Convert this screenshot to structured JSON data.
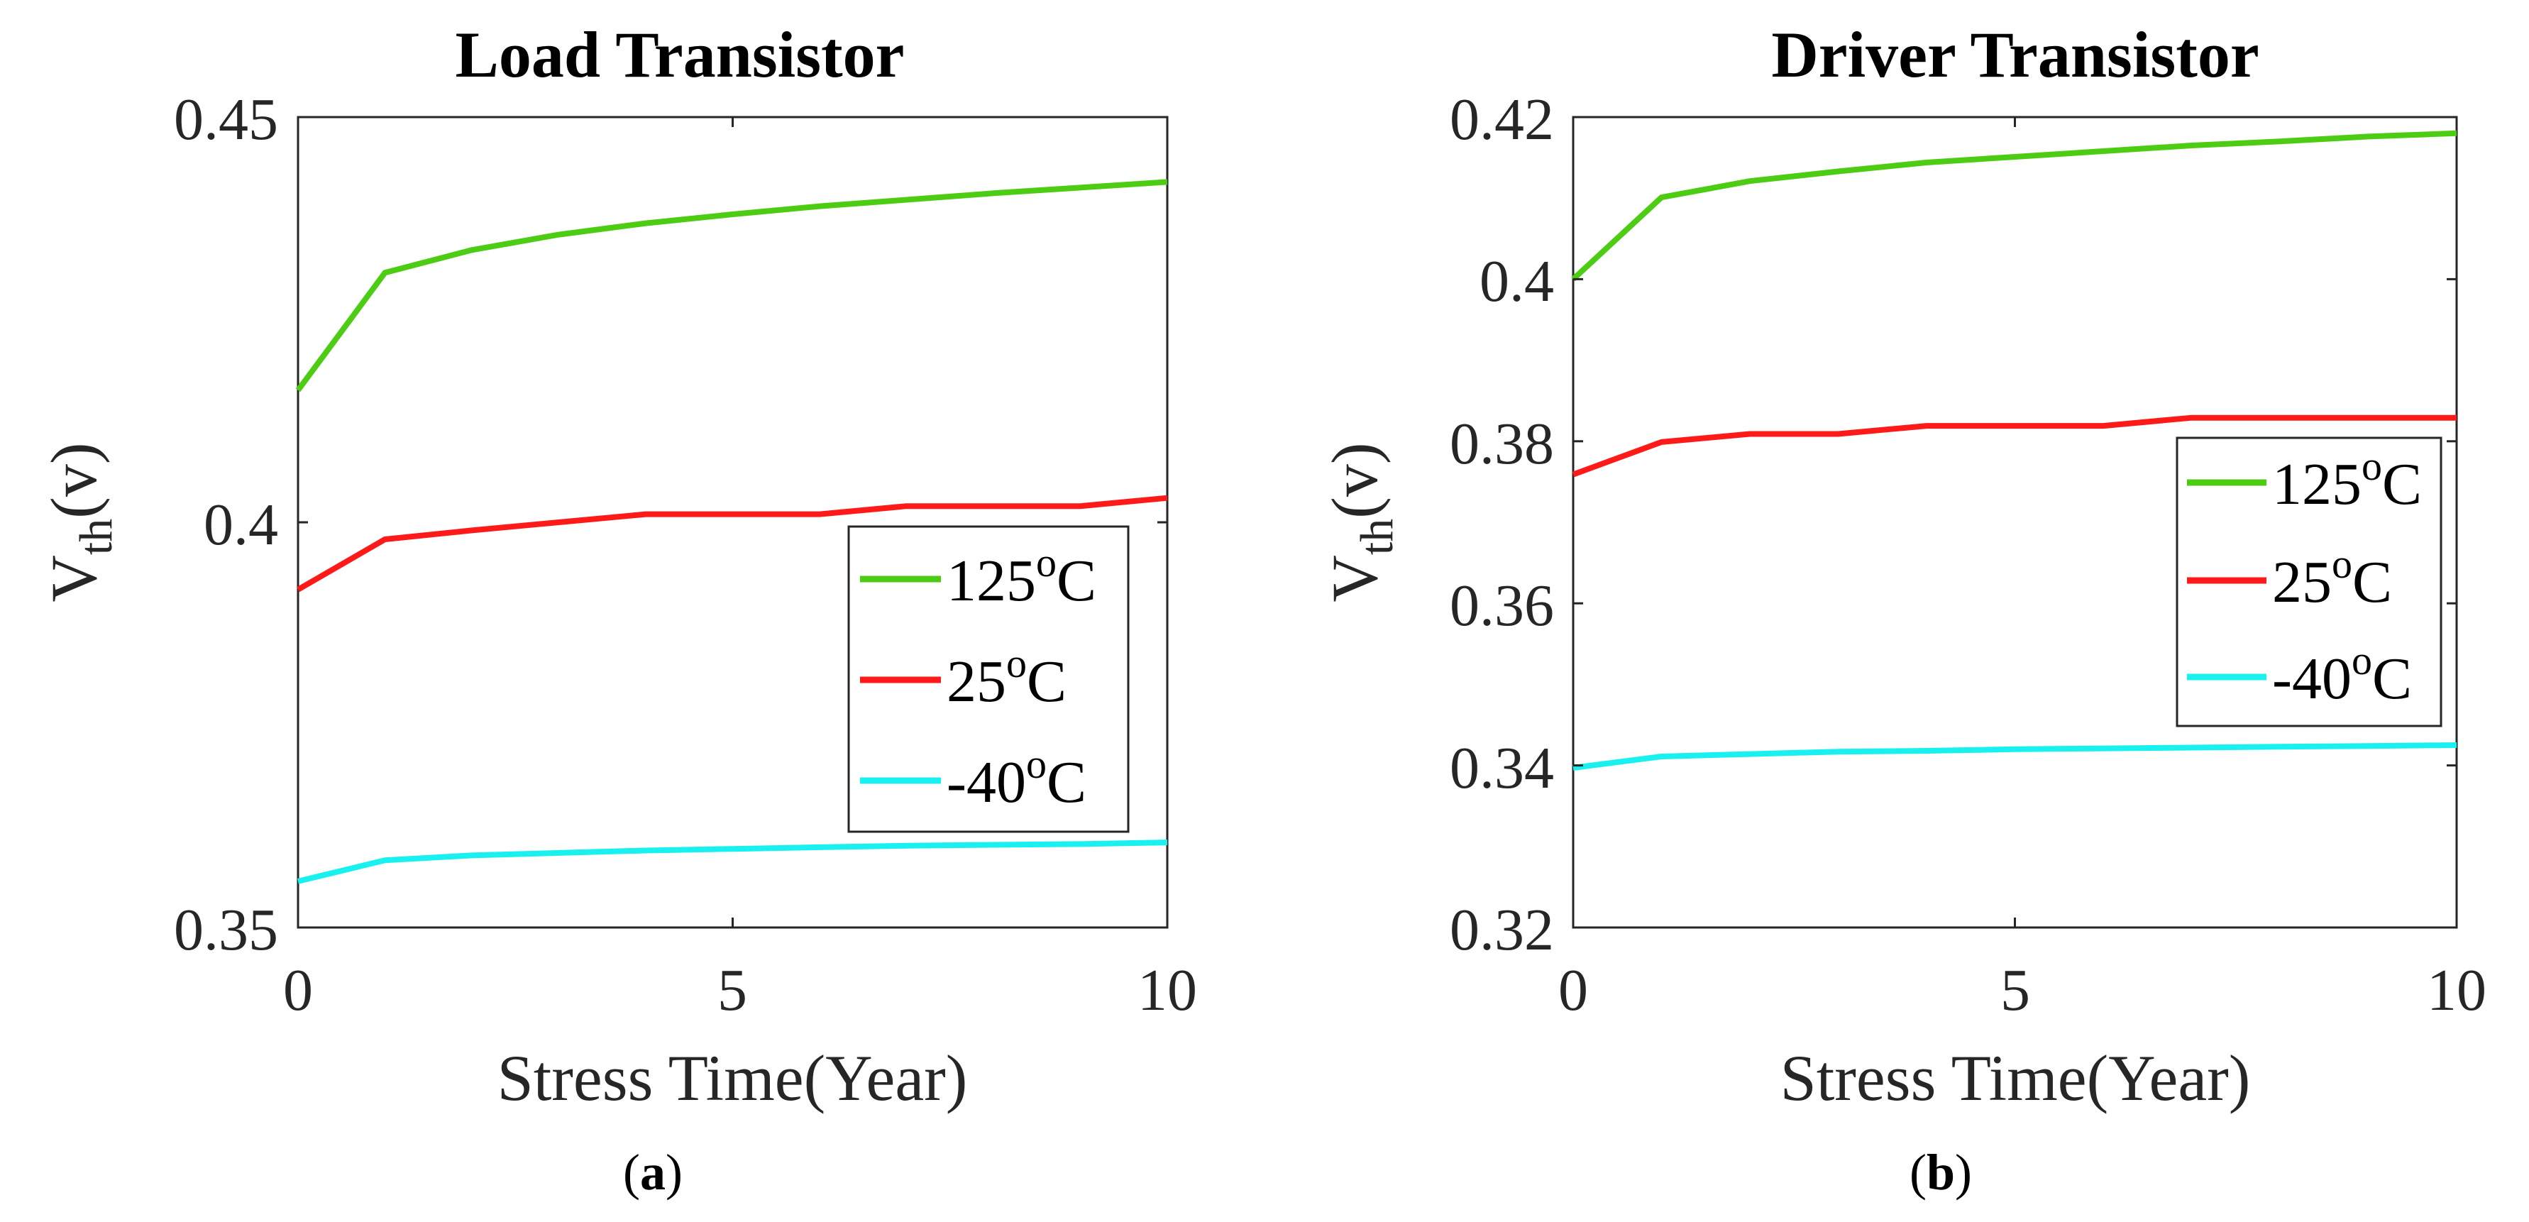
{
  "chart_data": [
    {
      "type": "line",
      "title": "Load Transistor",
      "xlabel": "Stress Time(Year)",
      "ylabel_main": "V",
      "ylabel_sub": "th",
      "ylabel_tail": "(v)",
      "caption_letter": "a",
      "xlim": [
        0,
        10
      ],
      "ylim": [
        0.35,
        0.45
      ],
      "xticks": [
        0,
        5,
        10
      ],
      "xtick_labels": [
        "0",
        "5",
        "10"
      ],
      "yticks": [
        0.35,
        0.4,
        0.45
      ],
      "ytick_labels": [
        "0.35",
        "0.4",
        "0.45"
      ],
      "legend_position": "bottom-right",
      "x": [
        0,
        1,
        2,
        3,
        4,
        5,
        6,
        7,
        8,
        9,
        10
      ],
      "series": [
        {
          "name_value": "125",
          "name_sup": "o",
          "name_unit": "C",
          "color": "#4dcc14",
          "values": [
            0.4163,
            0.4308,
            0.4336,
            0.4355,
            0.4369,
            0.438,
            0.439,
            0.4398,
            0.4406,
            0.4413,
            0.442
          ]
        },
        {
          "name_value": "25",
          "name_sup": "o",
          "name_unit": "C",
          "color": "#ff1a1a",
          "values": [
            0.3917,
            0.3979,
            0.399,
            0.4,
            0.401,
            0.401,
            0.401,
            0.402,
            0.402,
            0.402,
            0.403
          ]
        },
        {
          "name_value": "-40",
          "name_sup": "o",
          "name_unit": "C",
          "color": "#19f0f0",
          "values": [
            0.3557,
            0.3583,
            0.3589,
            0.3592,
            0.3595,
            0.3597,
            0.3599,
            0.3601,
            0.3602,
            0.3603,
            0.3605
          ]
        }
      ]
    },
    {
      "type": "line",
      "title": "Driver Transistor",
      "xlabel": "Stress Time(Year)",
      "ylabel_main": "V",
      "ylabel_sub": "th",
      "ylabel_tail": "(v)",
      "caption_letter": "b",
      "xlim": [
        0,
        10
      ],
      "ylim": [
        0.32,
        0.42
      ],
      "xticks": [
        0,
        5,
        10
      ],
      "xtick_labels": [
        "0",
        "5",
        "10"
      ],
      "yticks": [
        0.32,
        0.34,
        0.36,
        0.38,
        0.4,
        0.42
      ],
      "ytick_labels": [
        "0.32",
        "0.34",
        "0.36",
        "0.38",
        "0.4",
        "0.42"
      ],
      "legend_position": "right",
      "x": [
        0,
        1,
        2,
        3,
        4,
        5,
        6,
        7,
        8,
        9,
        10
      ],
      "series": [
        {
          "name_value": "125",
          "name_sup": "o",
          "name_unit": "C",
          "color": "#4dcc14",
          "values": [
            0.4,
            0.4101,
            0.4121,
            0.4133,
            0.4144,
            0.4151,
            0.4158,
            0.4165,
            0.417,
            0.4176,
            0.418
          ]
        },
        {
          "name_value": "25",
          "name_sup": "o",
          "name_unit": "C",
          "color": "#ff1a1a",
          "values": [
            0.3759,
            0.3799,
            0.3809,
            0.3809,
            0.3819,
            0.3819,
            0.3819,
            0.3829,
            0.3829,
            0.3829,
            0.3829
          ]
        },
        {
          "name_value": "-40",
          "name_sup": "o",
          "name_unit": "C",
          "color": "#19f0f0",
          "values": [
            0.3397,
            0.3411,
            0.3414,
            0.3417,
            0.3418,
            0.342,
            0.3421,
            0.3422,
            0.3423,
            0.3424,
            0.3425
          ]
        }
      ]
    }
  ]
}
